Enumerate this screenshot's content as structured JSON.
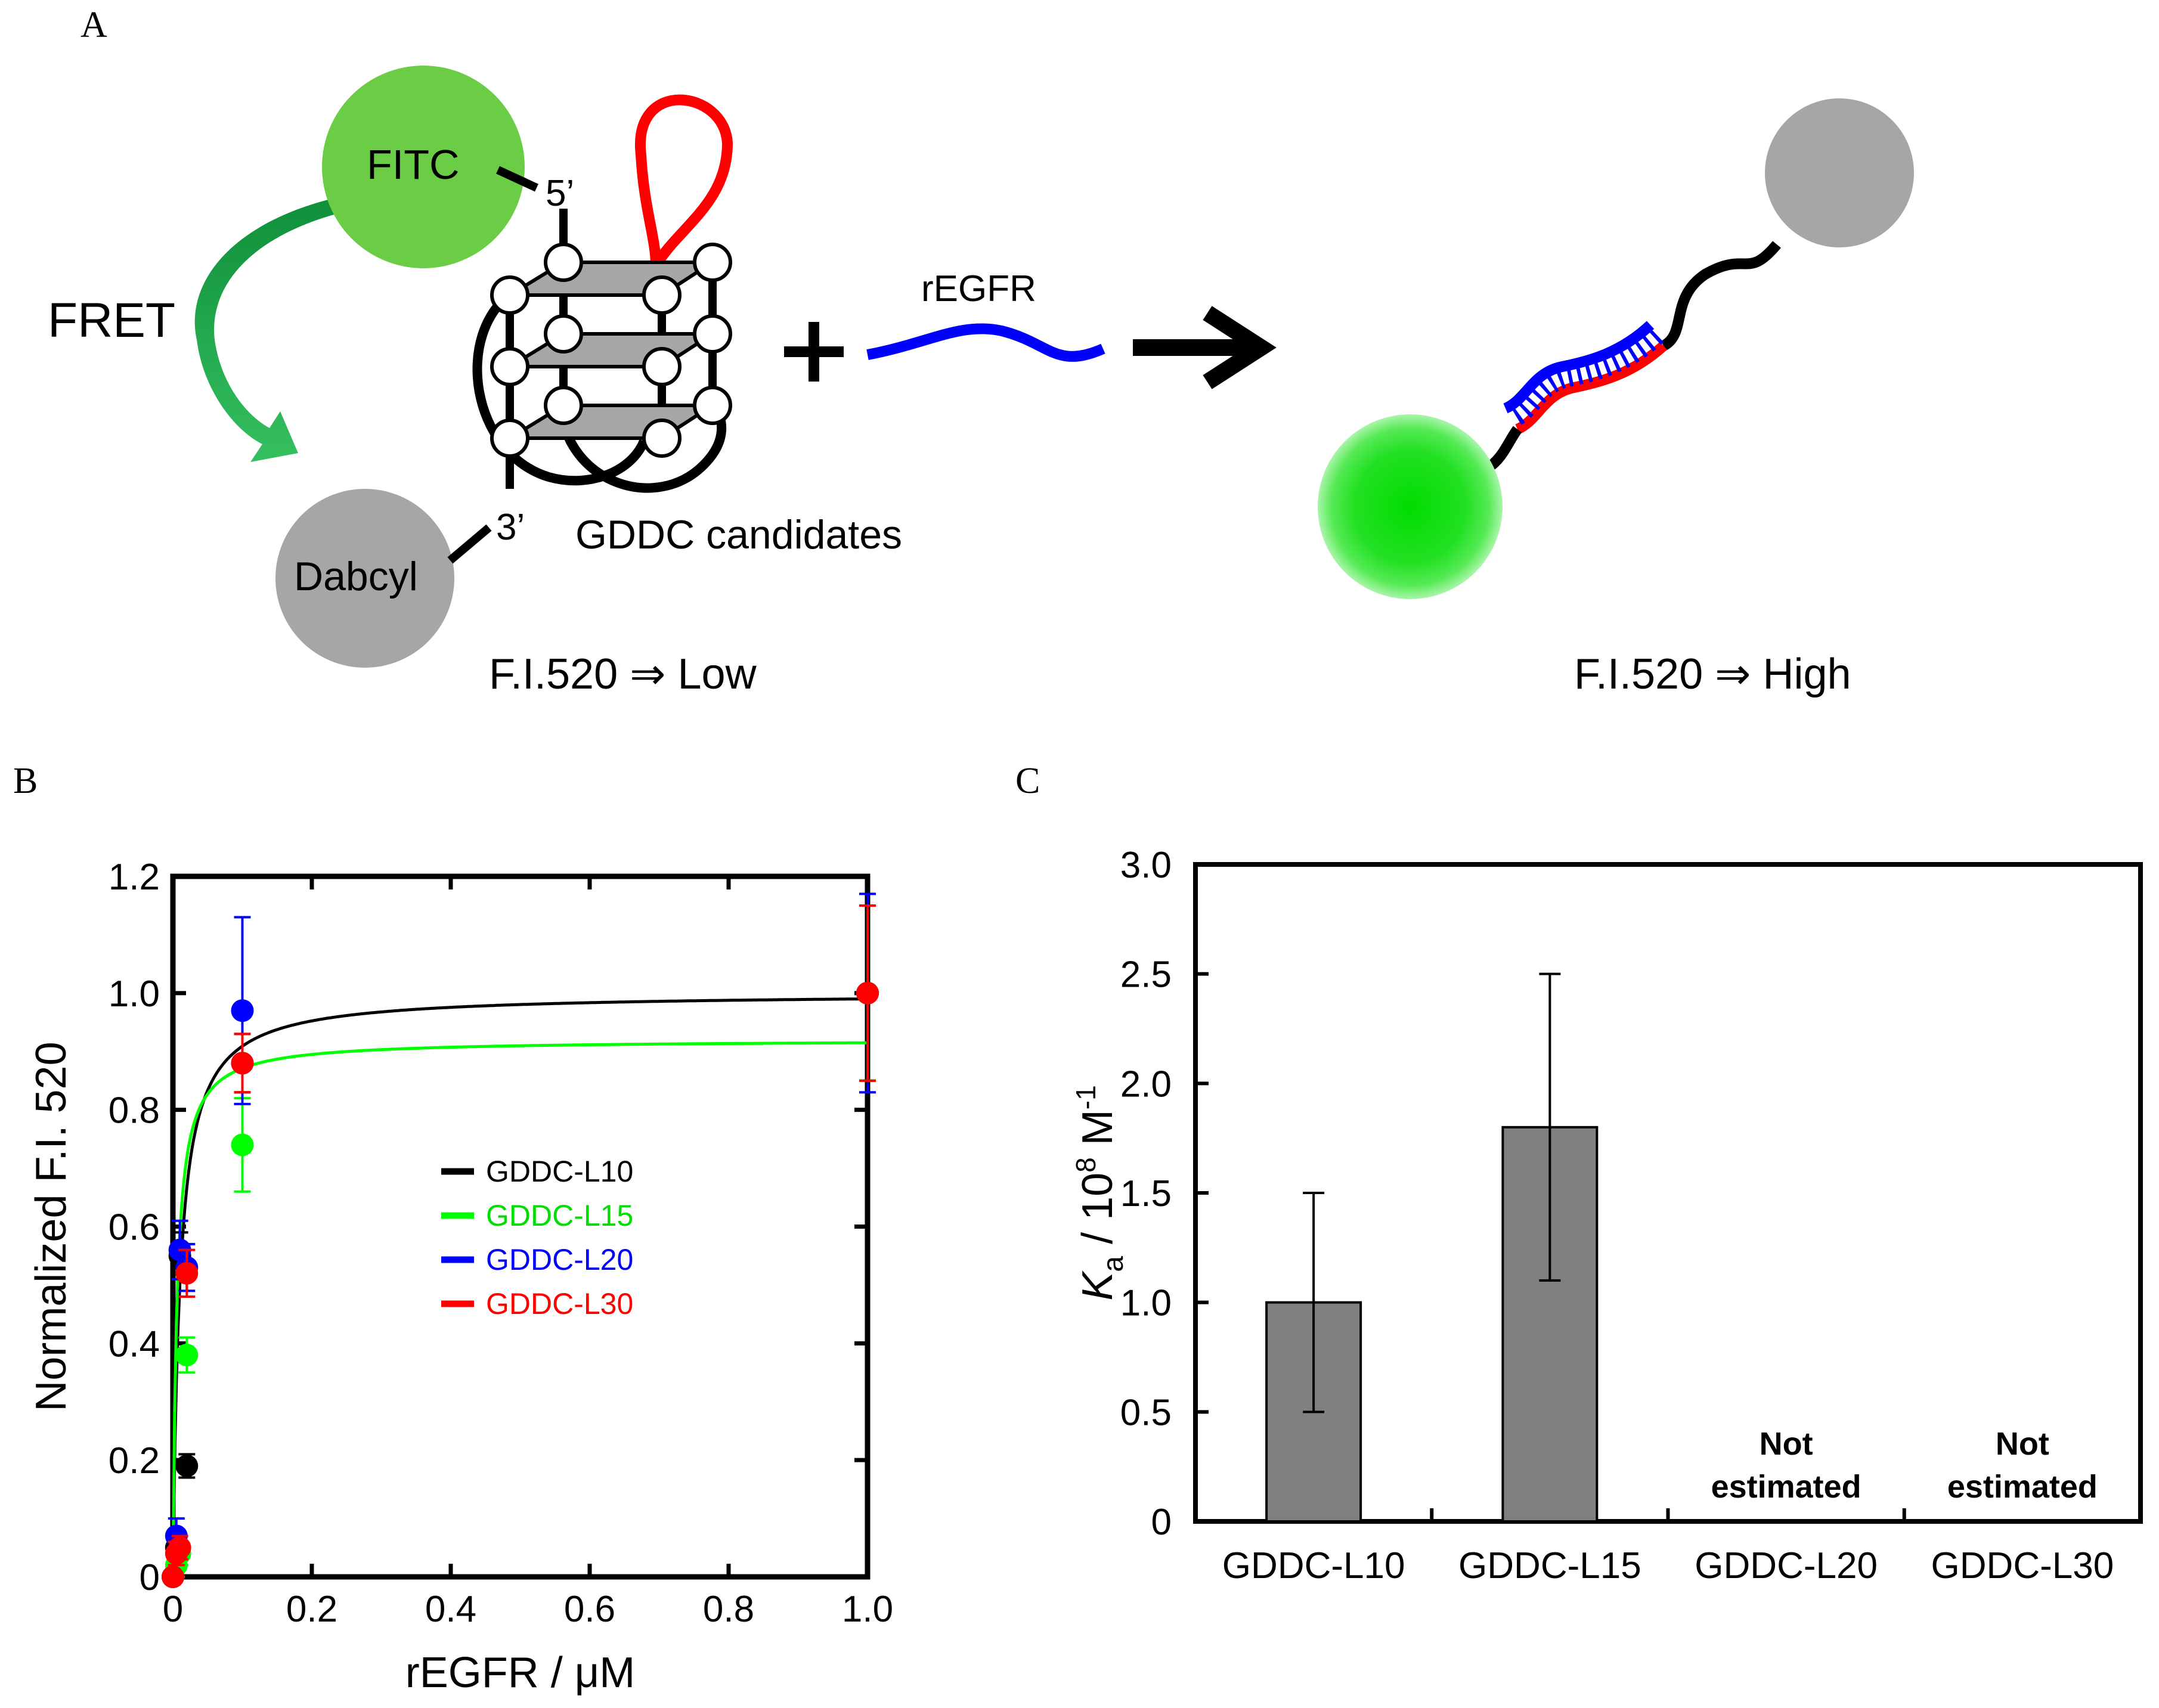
{
  "panelA": {
    "letter": "A",
    "fitc": "FITC",
    "dabcyl": "Dabcyl",
    "five_prime": "5’",
    "three_prime": "3’",
    "fret": "FRET",
    "gddc_candidates": "GDDC candidates",
    "plus": "+",
    "regfr": "rEGFR",
    "fi_low": "F.I.520 ⇒ Low",
    "fi_high": "F.I.520 ⇒ High",
    "colors": {
      "fitc": "#6acd45",
      "dabcyl": "#a6a6a6",
      "loop": "#ff0000",
      "target": "#0000ff",
      "fret_arrow": "#1aa04a",
      "bright_green": "#00dd00"
    }
  },
  "chart_data": [
    {
      "panel": "B",
      "type": "scatter",
      "xlabel": "rEGFR / μM",
      "ylabel": "Normalized F.I. 520",
      "xlim": [
        0,
        1.0
      ],
      "ylim": [
        0,
        1.2
      ],
      "x_ticks": [
        "0",
        "0.2",
        "0.4",
        "0.6",
        "0.8",
        "1.0"
      ],
      "y_ticks": [
        "0",
        "0.2",
        "0.4",
        "0.6",
        "0.8",
        "1.0",
        "1.2"
      ],
      "legend_position": "center",
      "series": [
        {
          "name": "GDDC-L10",
          "color": "#000000",
          "x": [
            0,
            0.005,
            0.01,
            0.02,
            0.1,
            1.0
          ],
          "y": [
            0.0,
            0.05,
            0.55,
            0.19,
            0.88,
            1.0
          ],
          "err": [
            0.0,
            0.03,
            0.04,
            0.02,
            0.05,
            0.15
          ],
          "fit": {
            "model": "langmuir",
            "Bmax": 1.0,
            "Kd": 0.01
          }
        },
        {
          "name": "GDDC-L15",
          "color": "#00ff00",
          "x": [
            0,
            0.005,
            0.01,
            0.02,
            0.1,
            1.0
          ],
          "y": [
            0.0,
            0.02,
            0.04,
            0.38,
            0.74,
            1.0
          ],
          "err": [
            0.0,
            0.02,
            0.02,
            0.03,
            0.08,
            0.15
          ],
          "fit": {
            "model": "langmuir",
            "Bmax": 0.92,
            "Kd": 0.0056
          }
        },
        {
          "name": "GDDC-L20",
          "color": "#0000ff",
          "x": [
            0,
            0.005,
            0.01,
            0.02,
            0.1,
            1.0
          ],
          "y": [
            0.0,
            0.07,
            0.56,
            0.53,
            0.97,
            1.0
          ],
          "err": [
            0.0,
            0.03,
            0.05,
            0.04,
            0.16,
            0.17
          ],
          "fit": null
        },
        {
          "name": "GDDC-L30",
          "color": "#ff0000",
          "x": [
            0,
            0.005,
            0.01,
            0.02,
            0.1,
            1.0
          ],
          "y": [
            0.0,
            0.04,
            0.05,
            0.52,
            0.88,
            1.0
          ],
          "err": [
            0.0,
            0.02,
            0.02,
            0.04,
            0.05,
            0.15
          ],
          "fit": null
        }
      ]
    },
    {
      "panel": "C",
      "type": "bar",
      "title": "",
      "xlabel": "",
      "ylabel_main": "K",
      "ylabel_sub": "a",
      "ylabel_unit": " / 10",
      "ylabel_exp": "8",
      "ylabel_unit2": " M",
      "ylabel_exp2": "-1",
      "ylim": [
        0,
        3.0
      ],
      "y_ticks": [
        "0",
        "0.5",
        "1.0",
        "1.5",
        "2.0",
        "2.5",
        "3.0"
      ],
      "categories": [
        "GDDC-L10",
        "GDDC-L15",
        "GDDC-L20",
        "GDDC-L30"
      ],
      "values": [
        1.0,
        1.8,
        null,
        null
      ],
      "err": [
        0.5,
        0.7,
        null,
        null
      ],
      "bar_color": "#808080",
      "annotations": [
        {
          "category": "GDDC-L20",
          "line1": "Not",
          "line2": "estimated"
        },
        {
          "category": "GDDC-L30",
          "line1": "Not",
          "line2": "estimated"
        }
      ]
    }
  ],
  "panelB": {
    "letter": "B"
  },
  "panelC": {
    "letter": "C"
  }
}
